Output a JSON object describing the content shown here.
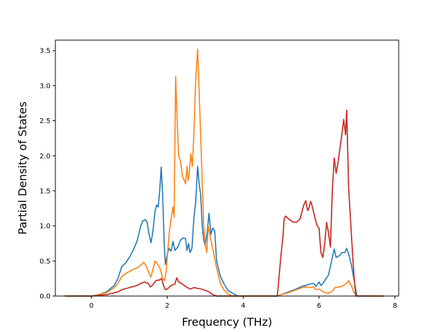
{
  "chart_data": {
    "type": "line",
    "title": "",
    "xlabel": "Frequency (THz)",
    "ylabel": "Partial Density of States",
    "xlim": [
      -0.95,
      8.1
    ],
    "ylim": [
      0,
      3.65
    ],
    "xticks": [
      0,
      2,
      4,
      6,
      8
    ],
    "xtick_labels": [
      "0",
      "2",
      "4",
      "6",
      "8"
    ],
    "yticks": [
      0.0,
      0.5,
      1.0,
      1.5,
      2.0,
      2.5,
      3.0,
      3.5
    ],
    "ytick_labels": [
      "0.0",
      "0.5",
      "1.0",
      "1.5",
      "2.0",
      "2.5",
      "3.0",
      "3.5"
    ],
    "grid": false,
    "legend": "none",
    "series": [
      {
        "color": "#1f77b4",
        "points": [
          [
            -0.7,
            0
          ],
          [
            0,
            0
          ],
          [
            0.2,
            0.02
          ],
          [
            0.4,
            0.06
          ],
          [
            0.6,
            0.15
          ],
          [
            0.7,
            0.25
          ],
          [
            0.8,
            0.42
          ],
          [
            0.9,
            0.47
          ],
          [
            1.0,
            0.55
          ],
          [
            1.1,
            0.65
          ],
          [
            1.2,
            0.78
          ],
          [
            1.3,
            1.0
          ],
          [
            1.35,
            1.07
          ],
          [
            1.42,
            1.09
          ],
          [
            1.47,
            1.05
          ],
          [
            1.52,
            0.88
          ],
          [
            1.57,
            0.76
          ],
          [
            1.62,
            0.92
          ],
          [
            1.68,
            1.22
          ],
          [
            1.72,
            1.3
          ],
          [
            1.76,
            1.27
          ],
          [
            1.8,
            1.5
          ],
          [
            1.84,
            1.84
          ],
          [
            1.88,
            1.4
          ],
          [
            1.92,
            0.72
          ],
          [
            1.95,
            0.45
          ],
          [
            2.0,
            0.6
          ],
          [
            2.05,
            0.68
          ],
          [
            2.1,
            0.64
          ],
          [
            2.15,
            0.78
          ],
          [
            2.2,
            0.65
          ],
          [
            2.28,
            0.7
          ],
          [
            2.35,
            0.8
          ],
          [
            2.42,
            0.83
          ],
          [
            2.48,
            0.82
          ],
          [
            2.52,
            0.65
          ],
          [
            2.56,
            0.75
          ],
          [
            2.6,
            0.62
          ],
          [
            2.65,
            0.68
          ],
          [
            2.7,
            1.1
          ],
          [
            2.75,
            1.35
          ],
          [
            2.8,
            1.85
          ],
          [
            2.84,
            1.6
          ],
          [
            2.88,
            1.45
          ],
          [
            2.92,
            1.0
          ],
          [
            2.96,
            0.8
          ],
          [
            3.0,
            0.72
          ],
          [
            3.05,
            0.9
          ],
          [
            3.1,
            1.18
          ],
          [
            3.15,
            0.88
          ],
          [
            3.2,
            0.97
          ],
          [
            3.25,
            0.93
          ],
          [
            3.3,
            0.5
          ],
          [
            3.4,
            0.28
          ],
          [
            3.5,
            0.17
          ],
          [
            3.6,
            0.08
          ],
          [
            3.75,
            0.03
          ],
          [
            3.85,
            0
          ],
          [
            4.9,
            0
          ],
          [
            5.0,
            0.02
          ],
          [
            5.2,
            0.06
          ],
          [
            5.4,
            0.1
          ],
          [
            5.55,
            0.14
          ],
          [
            5.65,
            0.15
          ],
          [
            5.75,
            0.17
          ],
          [
            5.85,
            0.18
          ],
          [
            5.92,
            0.14
          ],
          [
            6.0,
            0.2
          ],
          [
            6.05,
            0.15
          ],
          [
            6.1,
            0.18
          ],
          [
            6.15,
            0.22
          ],
          [
            6.25,
            0.3
          ],
          [
            6.33,
            0.5
          ],
          [
            6.4,
            0.67
          ],
          [
            6.45,
            0.55
          ],
          [
            6.55,
            0.58
          ],
          [
            6.6,
            0.62
          ],
          [
            6.68,
            0.62
          ],
          [
            6.73,
            0.68
          ],
          [
            6.78,
            0.6
          ],
          [
            6.85,
            0.45
          ],
          [
            6.9,
            0.3
          ],
          [
            7.0,
            0
          ],
          [
            7.7,
            0
          ]
        ]
      },
      {
        "color": "#ff7f0e",
        "points": [
          [
            -0.7,
            0
          ],
          [
            0,
            0
          ],
          [
            0.2,
            0.02
          ],
          [
            0.4,
            0.05
          ],
          [
            0.6,
            0.12
          ],
          [
            0.7,
            0.18
          ],
          [
            0.8,
            0.28
          ],
          [
            0.9,
            0.32
          ],
          [
            1.0,
            0.35
          ],
          [
            1.1,
            0.38
          ],
          [
            1.2,
            0.4
          ],
          [
            1.3,
            0.44
          ],
          [
            1.38,
            0.48
          ],
          [
            1.45,
            0.42
          ],
          [
            1.52,
            0.32
          ],
          [
            1.57,
            0.27
          ],
          [
            1.62,
            0.38
          ],
          [
            1.68,
            0.5
          ],
          [
            1.75,
            0.45
          ],
          [
            1.82,
            0.38
          ],
          [
            1.88,
            0.25
          ],
          [
            1.93,
            0.22
          ],
          [
            1.97,
            0.35
          ],
          [
            2.05,
            0.9
          ],
          [
            2.1,
            1.1
          ],
          [
            2.15,
            1.27
          ],
          [
            2.18,
            1.12
          ],
          [
            2.22,
            3.13
          ],
          [
            2.26,
            2.5
          ],
          [
            2.3,
            2.0
          ],
          [
            2.35,
            1.92
          ],
          [
            2.4,
            1.7
          ],
          [
            2.45,
            1.65
          ],
          [
            2.48,
            1.6
          ],
          [
            2.52,
            1.85
          ],
          [
            2.55,
            1.65
          ],
          [
            2.58,
            1.75
          ],
          [
            2.62,
            2.03
          ],
          [
            2.66,
            1.85
          ],
          [
            2.7,
            2.3
          ],
          [
            2.75,
            3.1
          ],
          [
            2.8,
            3.52
          ],
          [
            2.84,
            2.9
          ],
          [
            2.88,
            2.3
          ],
          [
            2.92,
            1.65
          ],
          [
            2.96,
            1.0
          ],
          [
            3.0,
            0.75
          ],
          [
            3.04,
            0.62
          ],
          [
            3.08,
            1.0
          ],
          [
            3.12,
            0.88
          ],
          [
            3.18,
            0.72
          ],
          [
            3.22,
            0.62
          ],
          [
            3.3,
            0.4
          ],
          [
            3.4,
            0.18
          ],
          [
            3.5,
            0.08
          ],
          [
            3.6,
            0.03
          ],
          [
            3.7,
            0
          ],
          [
            4.9,
            0
          ],
          [
            5.0,
            0.02
          ],
          [
            5.2,
            0.05
          ],
          [
            5.4,
            0.09
          ],
          [
            5.55,
            0.12
          ],
          [
            5.65,
            0.13
          ],
          [
            5.75,
            0.12
          ],
          [
            5.85,
            0.13
          ],
          [
            5.92,
            0.09
          ],
          [
            6.0,
            0.1
          ],
          [
            6.08,
            0.07
          ],
          [
            6.15,
            0.05
          ],
          [
            6.25,
            0.04
          ],
          [
            6.35,
            0.07
          ],
          [
            6.42,
            0.12
          ],
          [
            6.55,
            0.13
          ],
          [
            6.65,
            0.15
          ],
          [
            6.72,
            0.18
          ],
          [
            6.78,
            0.22
          ],
          [
            6.85,
            0.15
          ],
          [
            6.92,
            0.05
          ],
          [
            7.0,
            0
          ],
          [
            7.7,
            0
          ]
        ]
      },
      {
        "color": "#2ca02c",
        "points": [
          [
            -0.7,
            0
          ],
          [
            0,
            0
          ],
          [
            0.4,
            0.02
          ],
          [
            0.7,
            0.06
          ],
          [
            0.8,
            0.09
          ],
          [
            1.0,
            0.12
          ],
          [
            1.2,
            0.15
          ],
          [
            1.3,
            0.18
          ],
          [
            1.4,
            0.2
          ],
          [
            1.5,
            0.18
          ],
          [
            1.55,
            0.13
          ],
          [
            1.6,
            0.15
          ],
          [
            1.7,
            0.22
          ],
          [
            1.8,
            0.23
          ],
          [
            1.85,
            0.25
          ],
          [
            1.9,
            0.15
          ],
          [
            1.95,
            0.09
          ],
          [
            2.0,
            0.1
          ],
          [
            2.1,
            0.15
          ],
          [
            2.2,
            0.17
          ],
          [
            2.25,
            0.26
          ],
          [
            2.3,
            0.2
          ],
          [
            2.4,
            0.17
          ],
          [
            2.5,
            0.13
          ],
          [
            2.6,
            0.1
          ],
          [
            2.7,
            0.12
          ],
          [
            2.8,
            0.11
          ],
          [
            2.9,
            0.1
          ],
          [
            3.0,
            0.08
          ],
          [
            3.1,
            0.06
          ],
          [
            3.2,
            0.02
          ],
          [
            3.3,
            0
          ],
          [
            4.9,
            0
          ],
          [
            4.95,
            0.3
          ],
          [
            5.0,
            0.6
          ],
          [
            5.05,
            0.85
          ],
          [
            5.08,
            1.1
          ],
          [
            5.12,
            1.14
          ],
          [
            5.2,
            1.1
          ],
          [
            5.3,
            1.06
          ],
          [
            5.4,
            1.05
          ],
          [
            5.5,
            1.1
          ],
          [
            5.6,
            1.3
          ],
          [
            5.65,
            1.36
          ],
          [
            5.7,
            1.22
          ],
          [
            5.73,
            1.25
          ],
          [
            5.78,
            1.35
          ],
          [
            5.82,
            1.28
          ],
          [
            5.9,
            1.1
          ],
          [
            5.95,
            1.0
          ],
          [
            6.0,
            0.97
          ],
          [
            6.05,
            0.62
          ],
          [
            6.1,
            0.55
          ],
          [
            6.15,
            0.75
          ],
          [
            6.2,
            1.05
          ],
          [
            6.25,
            0.9
          ],
          [
            6.3,
            0.7
          ],
          [
            6.35,
            1.5
          ],
          [
            6.4,
            1.97
          ],
          [
            6.45,
            1.75
          ],
          [
            6.5,
            1.9
          ],
          [
            6.55,
            2.1
          ],
          [
            6.6,
            2.3
          ],
          [
            6.65,
            2.52
          ],
          [
            6.7,
            2.3
          ],
          [
            6.73,
            2.65
          ],
          [
            6.78,
            1.55
          ],
          [
            6.85,
            0.9
          ],
          [
            6.92,
            0.3
          ],
          [
            6.97,
            0
          ],
          [
            7.7,
            0
          ]
        ]
      },
      {
        "color": "#d62728",
        "points": [
          [
            -0.7,
            0
          ],
          [
            0,
            0
          ],
          [
            0.4,
            0.02
          ],
          [
            0.7,
            0.06
          ],
          [
            0.8,
            0.09
          ],
          [
            1.0,
            0.12
          ],
          [
            1.2,
            0.15
          ],
          [
            1.3,
            0.18
          ],
          [
            1.4,
            0.2
          ],
          [
            1.5,
            0.18
          ],
          [
            1.55,
            0.13
          ],
          [
            1.6,
            0.15
          ],
          [
            1.7,
            0.22
          ],
          [
            1.8,
            0.23
          ],
          [
            1.85,
            0.25
          ],
          [
            1.9,
            0.15
          ],
          [
            1.95,
            0.09
          ],
          [
            2.0,
            0.1
          ],
          [
            2.1,
            0.15
          ],
          [
            2.2,
            0.17
          ],
          [
            2.25,
            0.26
          ],
          [
            2.3,
            0.2
          ],
          [
            2.4,
            0.17
          ],
          [
            2.5,
            0.13
          ],
          [
            2.6,
            0.1
          ],
          [
            2.7,
            0.12
          ],
          [
            2.8,
            0.11
          ],
          [
            2.9,
            0.1
          ],
          [
            3.0,
            0.08
          ],
          [
            3.1,
            0.06
          ],
          [
            3.2,
            0.02
          ],
          [
            3.3,
            0
          ],
          [
            4.9,
            0
          ],
          [
            4.95,
            0.3
          ],
          [
            5.0,
            0.6
          ],
          [
            5.05,
            0.85
          ],
          [
            5.08,
            1.1
          ],
          [
            5.12,
            1.14
          ],
          [
            5.2,
            1.1
          ],
          [
            5.3,
            1.06
          ],
          [
            5.4,
            1.05
          ],
          [
            5.5,
            1.1
          ],
          [
            5.6,
            1.3
          ],
          [
            5.65,
            1.36
          ],
          [
            5.7,
            1.22
          ],
          [
            5.73,
            1.25
          ],
          [
            5.78,
            1.35
          ],
          [
            5.82,
            1.28
          ],
          [
            5.9,
            1.1
          ],
          [
            5.95,
            1.0
          ],
          [
            6.0,
            0.97
          ],
          [
            6.05,
            0.62
          ],
          [
            6.1,
            0.55
          ],
          [
            6.15,
            0.75
          ],
          [
            6.2,
            1.05
          ],
          [
            6.25,
            0.9
          ],
          [
            6.3,
            0.7
          ],
          [
            6.35,
            1.5
          ],
          [
            6.4,
            1.97
          ],
          [
            6.45,
            1.75
          ],
          [
            6.5,
            1.9
          ],
          [
            6.55,
            2.1
          ],
          [
            6.6,
            2.3
          ],
          [
            6.65,
            2.52
          ],
          [
            6.7,
            2.3
          ],
          [
            6.73,
            2.65
          ],
          [
            6.78,
            1.55
          ],
          [
            6.85,
            0.9
          ],
          [
            6.92,
            0.3
          ],
          [
            6.97,
            0
          ],
          [
            7.7,
            0
          ]
        ]
      }
    ]
  }
}
